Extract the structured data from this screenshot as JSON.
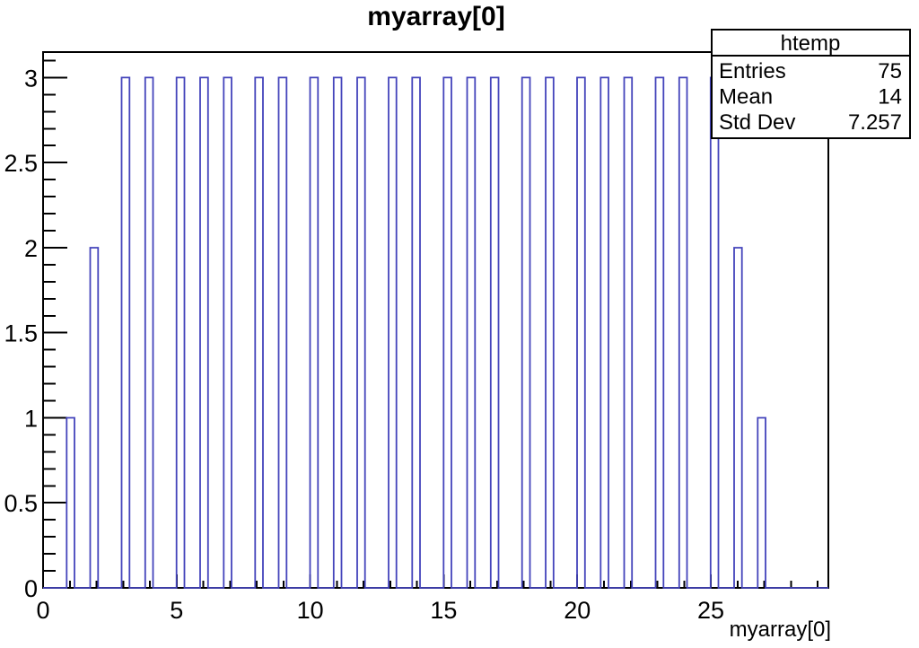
{
  "title": "myarray[0]",
  "stats_box": {
    "title": "htemp",
    "rows": [
      {
        "label": "Entries",
        "value": "75"
      },
      {
        "label": "Mean",
        "value": "14"
      },
      {
        "label": "Std Dev",
        "value": "7.257"
      }
    ]
  },
  "x_axis": {
    "label": "myarray[0]",
    "min": 0,
    "max": 29.4,
    "minor_tick_step": 1,
    "major_ticks": [
      {
        "value": 0,
        "label": "0"
      },
      {
        "value": 5,
        "label": "5"
      },
      {
        "value": 10,
        "label": "10"
      },
      {
        "value": 15,
        "label": "15"
      },
      {
        "value": 20,
        "label": "20"
      },
      {
        "value": 25,
        "label": "25"
      }
    ]
  },
  "y_axis": {
    "min": 0,
    "max": 3.15,
    "minor_tick_step": 0.1,
    "major_ticks": [
      {
        "value": 0,
        "label": "0"
      },
      {
        "value": 0.5,
        "label": "0.5"
      },
      {
        "value": 1,
        "label": "1"
      },
      {
        "value": 1.5,
        "label": "1.5"
      },
      {
        "value": 2,
        "label": "2"
      },
      {
        "value": 2.5,
        "label": "2.5"
      },
      {
        "value": 3,
        "label": "3"
      }
    ]
  },
  "chart_data": {
    "type": "bar",
    "subtype": "root-histogram-outline",
    "title": "myarray[0]",
    "xlabel": "myarray[0]",
    "ylabel": "",
    "hist_name": "htemp",
    "entries": 75,
    "mean": 14,
    "std_dev": 7.257,
    "nbins": 100,
    "xmin": 0,
    "xmax": 29.4,
    "ylim": [
      0,
      3.15
    ],
    "values": [
      1,
      2,
      3,
      4,
      5,
      6,
      7,
      8,
      9,
      10,
      11,
      12,
      13,
      14,
      15,
      16,
      17,
      18,
      19,
      20,
      21,
      22,
      23,
      24,
      25,
      26,
      27
    ],
    "counts": [
      1,
      2,
      3,
      3,
      3,
      3,
      3,
      3,
      3,
      3,
      3,
      3,
      3,
      3,
      3,
      3,
      3,
      3,
      3,
      3,
      3,
      3,
      3,
      3,
      3,
      2,
      1
    ],
    "legend": "none",
    "grid": "off"
  },
  "colors": {
    "histogram_line": "#4444bb",
    "axis": "#000000",
    "background": "#ffffff"
  }
}
